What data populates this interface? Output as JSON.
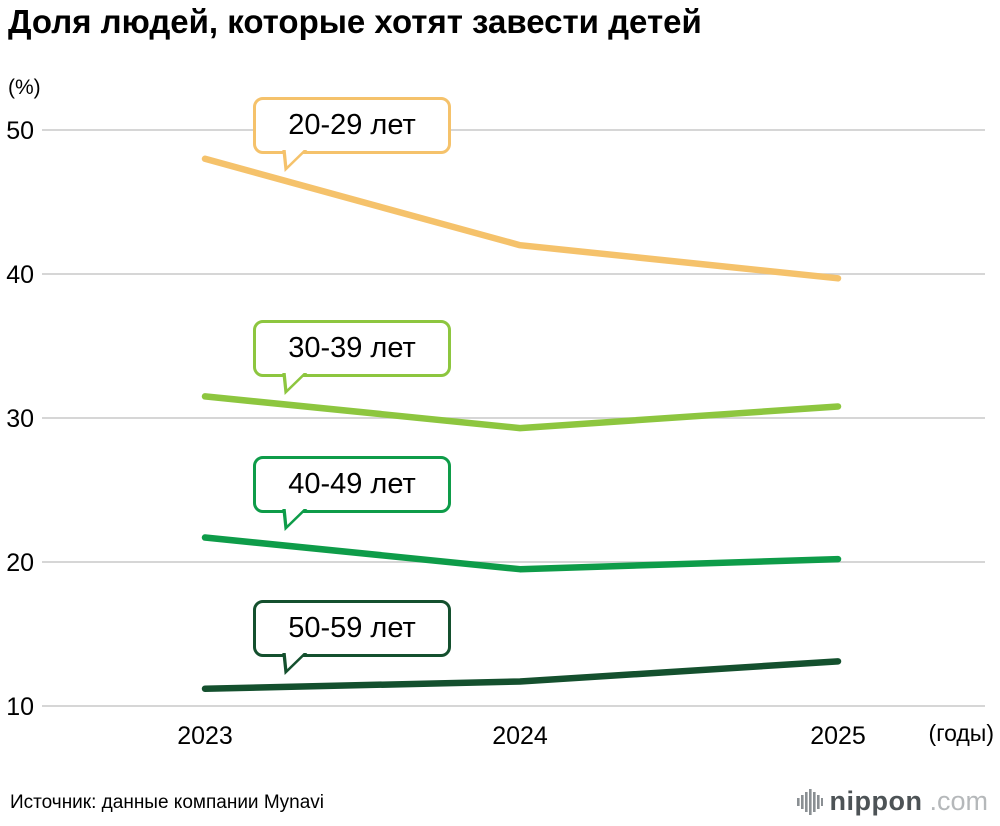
{
  "title": "Доля людей, которые хотят завести детей",
  "unit_label": "(%)",
  "xaxis_suffix": "(годы)",
  "source": "Источник: данные компании Mynavi",
  "logo": {
    "name": "nippon",
    "suffix": ".com"
  },
  "chart_data": {
    "type": "line",
    "title": "Доля людей, которые хотят завести детей",
    "x": [
      2023,
      2024,
      2025
    ],
    "xlabel": "(годы)",
    "ylabel": "(%)",
    "yticks": [
      10,
      20,
      30,
      40,
      50
    ],
    "ylim": [
      10,
      50
    ],
    "grid": true,
    "legend_position": "inline-callouts",
    "series": [
      {
        "name": "20-29 лет",
        "values": [
          48.0,
          42.0,
          39.7
        ],
        "color": "#F5C26B"
      },
      {
        "name": "30-39 лет",
        "values": [
          31.5,
          29.3,
          30.8
        ],
        "color": "#8DC63F"
      },
      {
        "name": "40-49 лет",
        "values": [
          21.7,
          19.5,
          20.2
        ],
        "color": "#0E9C49"
      },
      {
        "name": "50-59 лет",
        "values": [
          11.2,
          11.7,
          13.1
        ],
        "color": "#14502E"
      }
    ]
  }
}
